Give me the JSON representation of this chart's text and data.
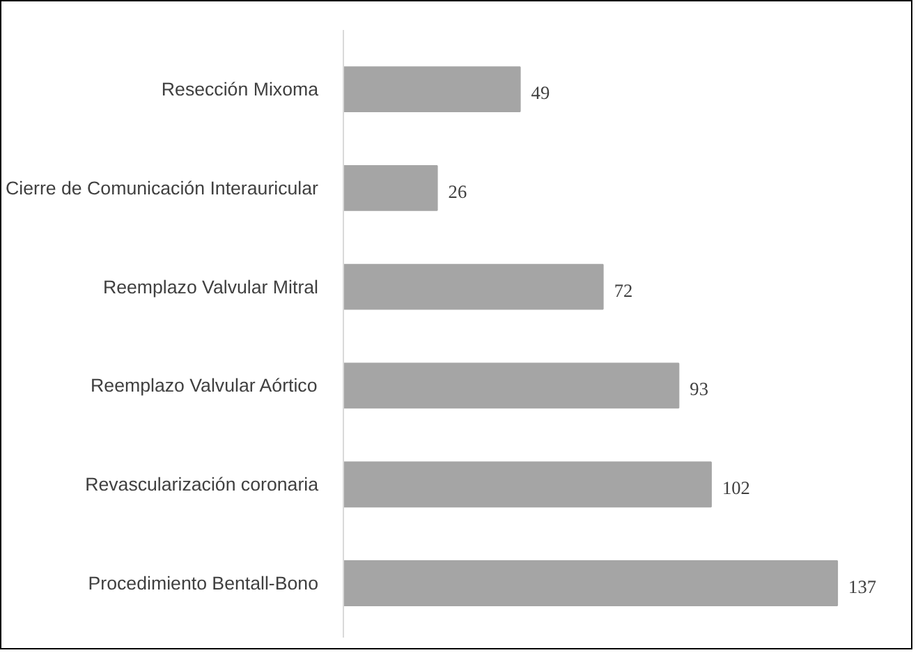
{
  "chart_data": {
    "type": "bar",
    "orientation": "horizontal",
    "categories": [
      "Resección Mixoma",
      "Cierre de Comunicación Interauricular",
      "Reemplazo Valvular Mitral",
      "Reemplazo Valvular Aórtico",
      "Revascularización coronaria",
      "Procedimiento Bentall-Bono"
    ],
    "values": [
      49,
      26,
      72,
      93,
      102,
      137
    ],
    "color": "#a5a5a5",
    "data_labels": true,
    "tick_labels": "y"
  }
}
